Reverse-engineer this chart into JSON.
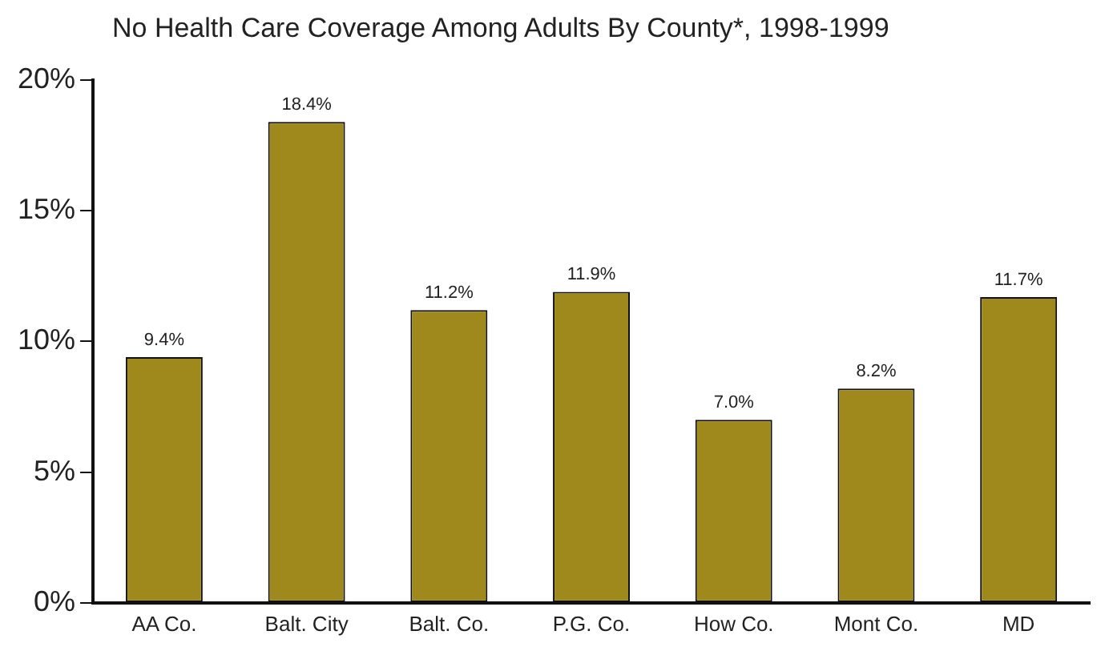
{
  "chart_data": {
    "type": "bar",
    "title": "No Health Care Coverage Among Adults By County*, 1998-1999",
    "categories": [
      "AA Co.",
      "Balt. City",
      "Balt. Co.",
      "P.G. Co.",
      "How Co.",
      "Mont Co.",
      "MD"
    ],
    "values": [
      9.4,
      18.4,
      11.2,
      11.9,
      7.0,
      8.2,
      11.7
    ],
    "value_labels": [
      "9.4%",
      "18.4%",
      "11.2%",
      "11.9%",
      "7.0%",
      "8.2%",
      "11.7%"
    ],
    "color": "#a0891c",
    "ylim": [
      0,
      20
    ],
    "yticks": [
      {
        "value": 0,
        "label": "0%"
      },
      {
        "value": 5,
        "label": "5%"
      },
      {
        "value": 10,
        "label": "10%"
      },
      {
        "value": 15,
        "label": "15%"
      },
      {
        "value": 20,
        "label": "20%"
      }
    ],
    "grid": false,
    "legend": false
  }
}
